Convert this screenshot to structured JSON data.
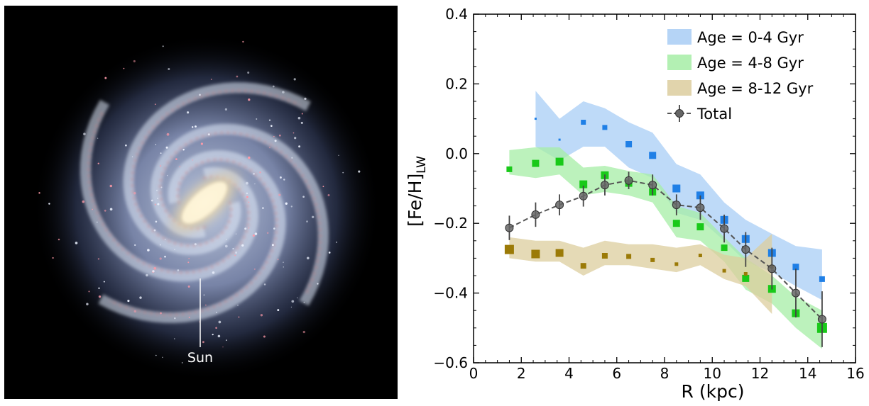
{
  "galaxy_image": {
    "sun_label": "Sun",
    "colors": {
      "background": "#000000",
      "disk": "#c8d4ea",
      "bulge": "#f4e4b4",
      "dust": "#d07878",
      "hii": "#ff9aa8"
    }
  },
  "chart_data": {
    "type": "line",
    "xlabel": "R (kpc)",
    "ylabel": "[Fe/H]",
    "ylabel_subscript": "LW",
    "xlim": [
      0,
      16
    ],
    "ylim": [
      -0.6,
      0.4
    ],
    "xticks": [
      0,
      2,
      4,
      6,
      8,
      10,
      12,
      14,
      16
    ],
    "yticks": [
      -0.6,
      -0.4,
      -0.2,
      0.0,
      0.2,
      0.4
    ],
    "xtick_labels": [
      "0",
      "2",
      "4",
      "6",
      "8",
      "10",
      "12",
      "14",
      "16"
    ],
    "ytick_labels": [
      "−0.6",
      "−0.4",
      "−0.2",
      "0.0",
      "0.2",
      "0.4"
    ],
    "grid": false,
    "legend_position": "top-right",
    "series": [
      {
        "name": "Age = 0-4 Gyr",
        "color": "#1f7fe6",
        "band_color": "#a8cdf5",
        "x": [
          2.6,
          3.6,
          4.6,
          5.5,
          6.5,
          7.5,
          8.5,
          9.5,
          10.5,
          11.4,
          12.5,
          13.5,
          14.6
        ],
        "y": [
          0.1,
          0.04,
          0.09,
          0.075,
          0.027,
          -0.005,
          -0.1,
          -0.12,
          -0.19,
          -0.245,
          -0.285,
          -0.325,
          -0.36
        ],
        "marker_size": [
          3,
          3,
          7,
          7,
          9,
          10,
          11,
          11,
          11,
          11,
          11,
          9,
          8
        ],
        "band_upper": [
          0.18,
          0.1,
          0.15,
          0.13,
          0.09,
          0.06,
          -0.03,
          -0.06,
          -0.14,
          -0.19,
          -0.23,
          -0.265,
          -0.275
        ],
        "band_lower": [
          0.02,
          -0.02,
          0.02,
          0.02,
          -0.04,
          -0.07,
          -0.17,
          -0.19,
          -0.25,
          -0.31,
          -0.34,
          -0.38,
          -0.42
        ]
      },
      {
        "name": "Age = 4-8 Gyr",
        "color": "#19c919",
        "band_color": "#a6eda6",
        "x": [
          1.5,
          2.6,
          3.6,
          4.6,
          5.5,
          6.5,
          7.5,
          8.5,
          9.5,
          10.5,
          11.4,
          12.5,
          13.5,
          14.6
        ],
        "y": [
          -0.045,
          -0.028,
          -0.023,
          -0.088,
          -0.062,
          -0.085,
          -0.11,
          -0.2,
          -0.21,
          -0.27,
          -0.358,
          -0.388,
          -0.458,
          -0.5
        ],
        "marker_size": [
          8,
          10,
          11,
          11,
          11,
          10,
          10,
          10,
          10,
          9,
          10,
          11,
          11,
          14
        ],
        "band_upper": [
          0.01,
          0.018,
          0.018,
          -0.04,
          -0.035,
          -0.05,
          -0.06,
          -0.15,
          -0.17,
          -0.24,
          -0.3,
          -0.35,
          -0.41,
          -0.45
        ],
        "band_lower": [
          -0.06,
          -0.07,
          -0.06,
          -0.12,
          -0.11,
          -0.12,
          -0.14,
          -0.24,
          -0.25,
          -0.31,
          -0.39,
          -0.43,
          -0.5,
          -0.56
        ]
      },
      {
        "name": "Age = 8-12 Gyr",
        "color": "#9b7a07",
        "band_color": "#dccd9e",
        "x": [
          1.5,
          2.6,
          3.6,
          4.6,
          5.5,
          6.5,
          7.5,
          8.5,
          9.5,
          10.5,
          11.4,
          12.5
        ],
        "y": [
          -0.275,
          -0.288,
          -0.285,
          -0.322,
          -0.293,
          -0.295,
          -0.305,
          -0.317,
          -0.292,
          -0.336,
          -0.345,
          -0.325
        ],
        "marker_size": [
          13,
          12,
          11,
          8,
          8,
          7,
          6,
          5,
          5,
          5,
          5,
          5
        ],
        "band_upper": [
          -0.24,
          -0.25,
          -0.25,
          -0.27,
          -0.25,
          -0.26,
          -0.26,
          -0.27,
          -0.26,
          -0.29,
          -0.3,
          -0.23
        ],
        "band_lower": [
          -0.3,
          -0.31,
          -0.31,
          -0.35,
          -0.32,
          -0.32,
          -0.33,
          -0.34,
          -0.32,
          -0.36,
          -0.38,
          -0.46
        ]
      },
      {
        "name": "Total",
        "color": "#555555",
        "x": [
          1.5,
          2.6,
          3.6,
          4.6,
          5.5,
          6.5,
          7.5,
          8.5,
          9.5,
          10.5,
          11.4,
          12.5,
          13.5,
          14.6
        ],
        "y": [
          -0.213,
          -0.175,
          -0.147,
          -0.122,
          -0.09,
          -0.077,
          -0.09,
          -0.147,
          -0.155,
          -0.215,
          -0.275,
          -0.33,
          -0.4,
          -0.475
        ],
        "yerr": [
          0.035,
          0.035,
          0.03,
          0.03,
          0.03,
          0.025,
          0.03,
          0.03,
          0.035,
          0.04,
          0.05,
          0.06,
          0.07,
          0.08
        ]
      }
    ]
  }
}
